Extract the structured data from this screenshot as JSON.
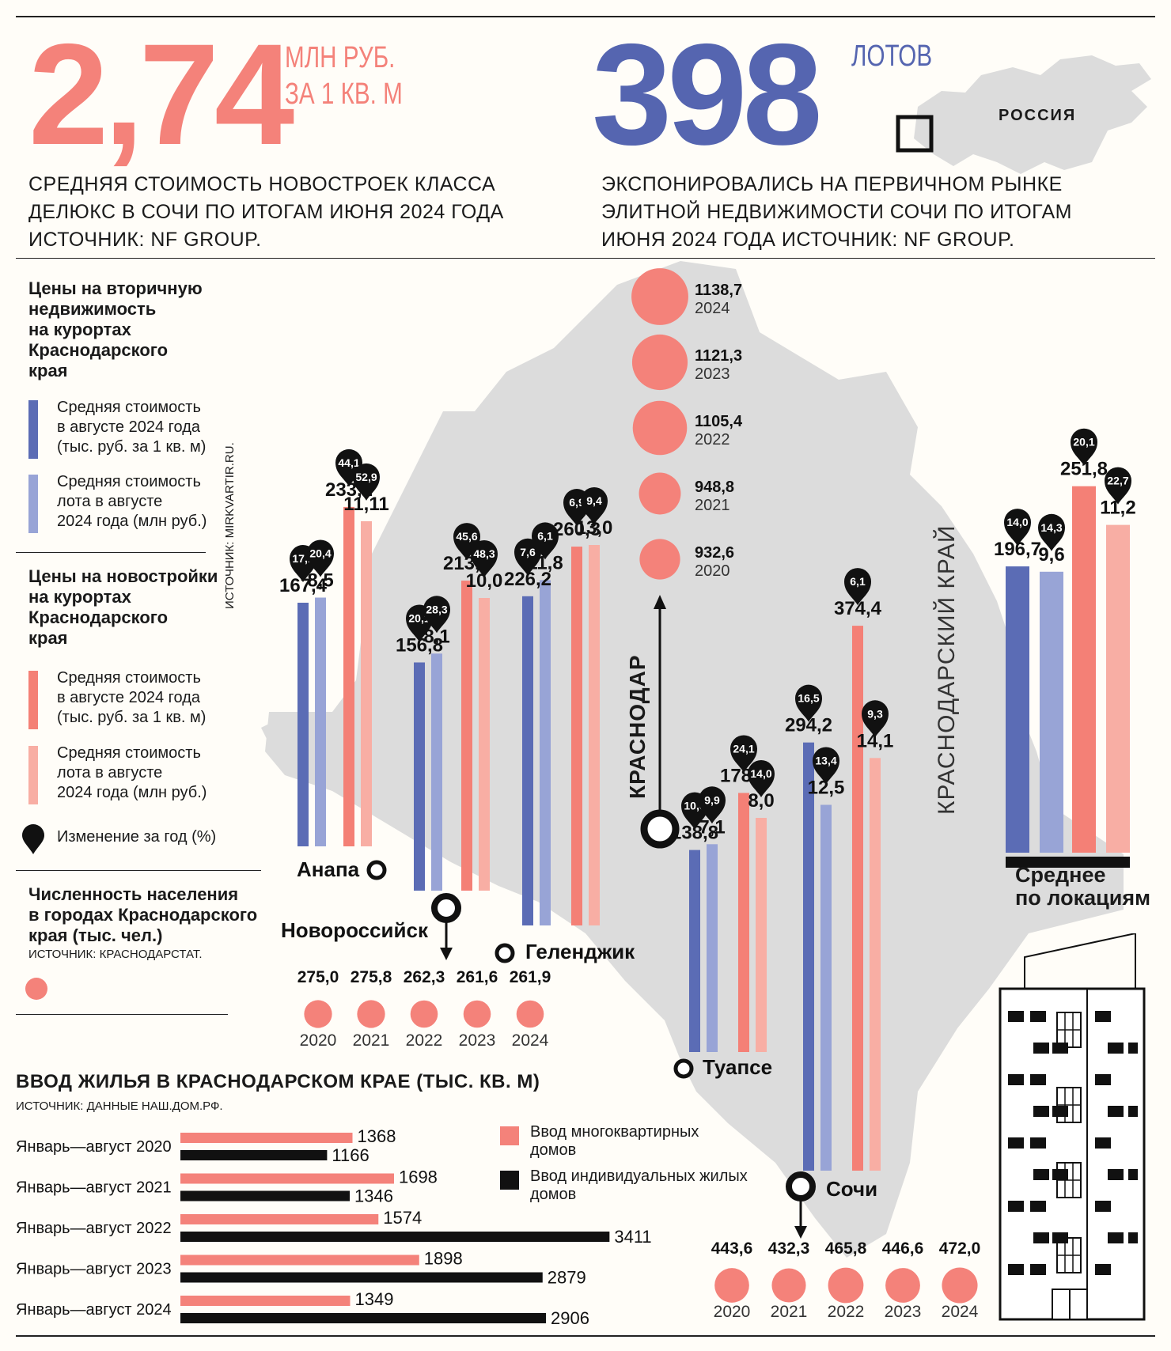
{
  "header": {
    "left": {
      "number": "2,74",
      "unit_line1": "МЛН РУБ.",
      "unit_line2": "ЗА 1 КВ. М",
      "caption_line1": "СРЕДНЯЯ СТОИМОСТЬ НОВОСТРОЕК КЛАССА",
      "caption_line2": "ДЕЛЮКС В СОЧИ ПО ИТОГАМ ИЮНЯ 2024 ГОДА",
      "caption_line3": "ИСТОЧНИК: NF GROUP."
    },
    "right": {
      "number": "398",
      "unit": "ЛОТОВ",
      "map_label": "РОССИЯ",
      "caption_line1": "ЭКСПОНИРОВАЛИСЬ НА ПЕРВИЧНОМ РЫНКЕ",
      "caption_line2": "ЭЛИТНОЙ НЕДВИЖИМОСТИ СОЧИ ПО ИТОГАМ",
      "caption_line3": "ИЮНЯ 2024 ГОДА  ИСТОЧНИК: NF GROUP."
    }
  },
  "legend": {
    "secondary_title": [
      "Цены на вторичную",
      "недвижимость",
      "на курортах",
      "Краснодарского",
      "края"
    ],
    "item_sqm": [
      "Средняя стоимость",
      "в августе 2024 года",
      "(тыс. руб. за 1 кв. м)"
    ],
    "item_lot": [
      "Средняя стоимость",
      "лота в августе",
      "2024 года (млн руб.)"
    ],
    "new_title": [
      "Цены на новостройки",
      "на курортах",
      "Краснодарского",
      "края"
    ],
    "change_label": "Изменение за год (%)",
    "population_title": [
      "Численность населения",
      "в городах Краснодарского",
      "края (тыс. чел.)"
    ],
    "population_source": "ИСТОЧНИК: КРАСНОДАРСТАТ.",
    "side_source": "ИСТОЧНИК: MIRKVARTIR.RU."
  },
  "colors": {
    "secondary_sqm": "#5b6cb5",
    "secondary_lot": "#98a4d6",
    "new_sqm": "#f48076",
    "new_lot": "#f8aea4",
    "accent_red": "#f4827a",
    "accent_blue": "#5565b0",
    "map": "#dcdcdc",
    "dark": "#111111"
  },
  "region_label": "КРАСНОДАРСКИЙ КРАЙ",
  "chart_data": [
    {
      "type": "bar",
      "title": "Цены на недвижимость на курортах Краснодарского края",
      "categories": [
        "Анапа",
        "Новороссийск",
        "Геленджик",
        "Туапсе",
        "Сочи",
        "Среднее по локациям"
      ],
      "series": [
        {
          "name": "Вторичная: средняя стоимость в августе 2024 года (тыс. руб. за 1 кв. м)",
          "values": [
            167.4,
            156.8,
            226.2,
            138.8,
            294.2,
            196.7
          ],
          "labels": [
            "167,4",
            "156,8",
            "226,2",
            "138,8",
            "294,2",
            "196,7"
          ],
          "change": [
            "17,1",
            "20,1",
            "7,6",
            "10,0",
            "16,5",
            "14,0"
          ]
        },
        {
          "name": "Вторичная: средняя стоимость лота в августе 2024 года (млн руб.)",
          "values": [
            8.5,
            8.1,
            11.8,
            7.1,
            12.5,
            9.6
          ],
          "labels": [
            "8,5",
            "8,1",
            "11,8",
            "7,1",
            "12,5",
            "9,6"
          ],
          "change": [
            "20,4",
            "28,3",
            "6,1",
            "9,9",
            "13,4",
            "14,3"
          ]
        },
        {
          "name": "Новостройки: средняя стоимость в августе 2024 года (тыс. руб. за 1 кв. м)",
          "values": [
            233.2,
            213.0,
            260.3,
            178.0,
            374.4,
            251.8
          ],
          "labels": [
            "233,2",
            "213,0",
            "260,3",
            "178,0",
            "374,4",
            "251,8"
          ],
          "change": [
            "44,1",
            "45,6",
            "6,9",
            "24,1",
            "6,1",
            "20,1"
          ]
        },
        {
          "name": "Новостройки: средняя стоимость лота в августе 2024 года (млн руб.)",
          "values": [
            11.11,
            10.0,
            13.0,
            8.0,
            14.1,
            11.2
          ],
          "labels": [
            "11,11",
            "10,0",
            "13,0",
            "8,0",
            "14,1",
            "11,2"
          ],
          "change": [
            "52,9",
            "48,3",
            "9,4",
            "14,0",
            "9,3",
            "22,7"
          ]
        }
      ]
    },
    {
      "type": "scatter",
      "title": "Численность населения Краснодар (тыс. чел.)",
      "city": "КРАСНОДАР",
      "x": [
        "2024",
        "2023",
        "2022",
        "2021",
        "2020"
      ],
      "values": [
        1138.7,
        1121.3,
        1105.4,
        948.8,
        932.6
      ],
      "labels": [
        "1138,7",
        "1121,3",
        "1105,4",
        "948,8",
        "932,6"
      ]
    },
    {
      "type": "scatter",
      "title": "Численность населения Новороссийск (тыс. чел.)",
      "x": [
        "2020",
        "2021",
        "2022",
        "2023",
        "2024"
      ],
      "values": [
        275.0,
        275.8,
        262.3,
        261.6,
        261.9
      ],
      "labels": [
        "275,0",
        "275,8",
        "262,3",
        "261,6",
        "261,9"
      ]
    },
    {
      "type": "scatter",
      "title": "Численность населения Сочи (тыс. чел.)",
      "x": [
        "2020",
        "2021",
        "2022",
        "2023",
        "2024"
      ],
      "values": [
        443.6,
        432.3,
        465.8,
        446.6,
        472.0
      ],
      "labels": [
        "443,6",
        "432,3",
        "465,8",
        "446,6",
        "472,0"
      ]
    },
    {
      "type": "bar",
      "orientation": "horizontal",
      "title": "ВВОД ЖИЛЬЯ В КРАСНОДАРСКОМ КРАЕ (ТЫС. КВ. М)",
      "source": "ИСТОЧНИК: ДАННЫЕ НАШ.ДОМ.РФ.",
      "categories": [
        "Январь—август 2020",
        "Январь—август 2021",
        "Январь—август 2022",
        "Январь—август 2023",
        "Январь—август 2024"
      ],
      "series": [
        {
          "name_line1": "Ввод многоквартирных",
          "name_line2": "домов",
          "values": [
            1368,
            1698,
            1574,
            1898,
            1349
          ]
        },
        {
          "name_line1": "Ввод индивидуальных жилых",
          "name_line2": "домов",
          "values": [
            1166,
            1346,
            3411,
            2879,
            2906
          ]
        }
      ]
    }
  ],
  "average_label": [
    "Среднее",
    "по локациям"
  ]
}
